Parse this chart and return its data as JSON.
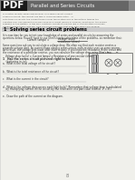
{
  "title": "Parallel and Series Circuits",
  "pdf_label": "PDF",
  "section_title": "1  Solving series circuit problems",
  "bg_color": "#f0f0eb",
  "header_bg": "#666666",
  "header_text_color": "#ffffff",
  "pdf_bg": "#1a1a1a",
  "section_bg": "#cccccc",
  "body_text_color": "#333333",
  "page_number": "8",
  "intro_lines": [
    "of electric circuits: series and parallel. In a series circuit, current",
    "a parallel circuit, the current has two or more possible paths.   In",
    "both types of circuits, the current travels from the positive end of the battery toward the",
    "negative end. The amount of energy used by a circuit (series or parallel) must equal the energy",
    "supplied by the battery. In this way, electrical circuits follow the law of conservation of energy.",
    "Understanding these facts will help you solve problems that deal with series and parallel",
    "circuits."
  ],
  "body_lines": [
    "It is now time for you to test your knowledge of series and parallel circuits by answering the",
    "questions below. You will have to use Ohm's law to solve some of the problems, so remember that:"
  ],
  "vd_lines": [
    "Some questions ask you to calculate a voltage drop. We often say that each resistor creates a",
    "separate voltage drop. As current flows along a series circuit, each resistor uses up some energy.",
    "As a result, the voltage gets lower after each resistor. If you know the resistance in the circuit and",
    "the resistance of a particular resistor, you can calculate the voltage drop using Ohm's law:"
  ],
  "formula2": "Voltage drop (volts) = Current (amps) x Resistance of one resistor (ohms)",
  "q1_line1": "1   Has the series circuit pictured right to batteries",
  "q1_line2": "    (batteries in, in):",
  "qa": "a.  What is the total voltage of the circuit?",
  "qb": "b.  What is the total resistance of the circuit?",
  "qc": "c.  What is the current in the circuit?",
  "qd1": "d.  What is the voltage drop across each light bulb? (Remember that voltage drop is calculated",
  "qd2": "    by multiplying current in the circuit by the resistance of a particular resistor. V = IR.)",
  "qe": "e.  Draw the path of the current on the diagram."
}
